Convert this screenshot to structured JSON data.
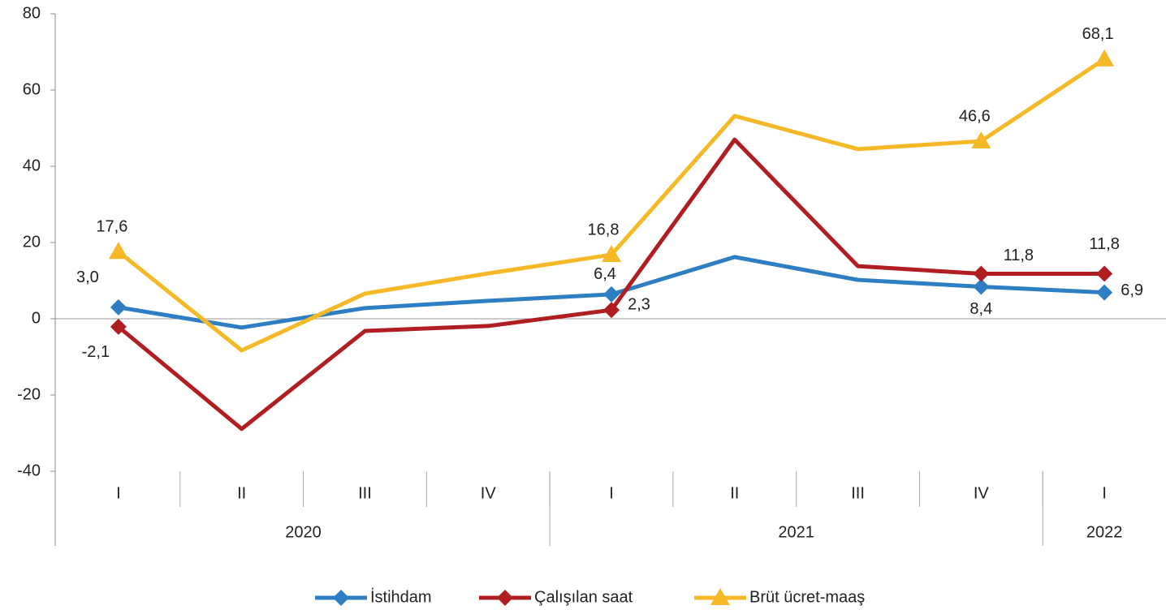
{
  "chart_data": {
    "type": "line",
    "categories": [
      "I",
      "II",
      "III",
      "IV",
      "I",
      "II",
      "III",
      "IV",
      "I"
    ],
    "groups": [
      {
        "label": "2020",
        "span": 4
      },
      {
        "label": "2021",
        "span": 4
      },
      {
        "label": "2022",
        "span": 1
      }
    ],
    "ylim": [
      -40,
      80
    ],
    "yticks": [
      -40,
      -20,
      0,
      20,
      40,
      60,
      80
    ],
    "series": [
      {
        "name": "İstihdam",
        "color": "#2e7ec3",
        "marker": "diamond",
        "values": [
          3.0,
          -2.3,
          2.8,
          4.7,
          6.4,
          16.2,
          10.2,
          8.4,
          6.9
        ],
        "value_labels": [
          "3,0",
          null,
          null,
          null,
          "6,4",
          null,
          null,
          "8,4",
          "6,9"
        ]
      },
      {
        "name": "Çalışılan saat",
        "color": "#b01e22",
        "marker": "diamond",
        "values": [
          -2.1,
          -28.9,
          -3.2,
          -1.9,
          2.3,
          47.0,
          13.8,
          11.8,
          11.8
        ],
        "value_labels": [
          "-2,1",
          null,
          null,
          null,
          "2,3",
          null,
          null,
          "11,8",
          "11,8"
        ]
      },
      {
        "name": "Brüt ücret-maaş",
        "color": "#f5b928",
        "marker": "triangle",
        "values": [
          17.6,
          -8.3,
          6.6,
          11.9,
          16.8,
          53.2,
          44.5,
          46.6,
          68.1
        ],
        "value_labels": [
          "17,6",
          null,
          null,
          null,
          "16,8",
          null,
          null,
          "46,6",
          "68,1"
        ]
      }
    ]
  }
}
